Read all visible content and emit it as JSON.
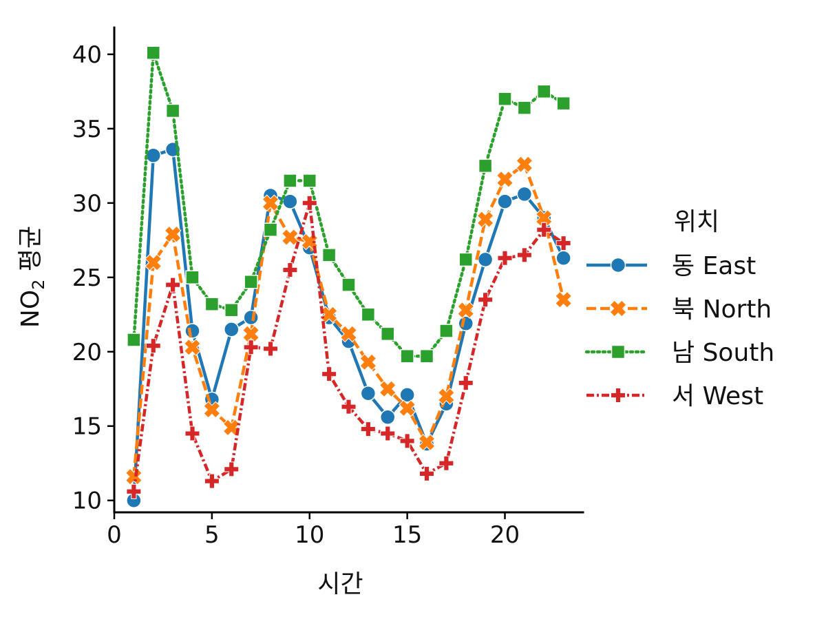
{
  "chart_data": {
    "type": "line",
    "xlabel": "시간",
    "ylabel_main": "NO",
    "ylabel_sub": "2",
    "ylabel_rest": " 평균",
    "xlim": [
      0,
      24
    ],
    "ylim": [
      9.2,
      41.8
    ],
    "xticks": [
      0,
      5,
      10,
      15,
      20
    ],
    "yticks": [
      10,
      15,
      20,
      25,
      30,
      35,
      40
    ],
    "legend": {
      "title": "위치",
      "placement": "center-right"
    },
    "grid": false,
    "x": [
      1,
      2,
      3,
      4,
      5,
      6,
      7,
      8,
      9,
      10,
      11,
      12,
      13,
      14,
      15,
      16,
      17,
      18,
      19,
      20,
      21,
      22,
      23
    ],
    "series": [
      {
        "name": "동 East",
        "color": "#1f77b4",
        "marker": "circle",
        "dash": "solid",
        "values": [
          10.0,
          33.2,
          33.6,
          21.4,
          16.8,
          21.5,
          22.3,
          30.5,
          30.1,
          27.0,
          22.3,
          20.7,
          17.2,
          15.6,
          17.1,
          13.8,
          16.5,
          21.9,
          26.2,
          30.1,
          30.6,
          29.0,
          26.3
        ]
      },
      {
        "name": "북 North",
        "color": "#ff7f0e",
        "marker": "x",
        "dash": "dashed",
        "values": [
          11.6,
          26.0,
          27.9,
          20.3,
          16.1,
          14.9,
          21.2,
          30.0,
          27.7,
          27.4,
          22.5,
          21.2,
          19.3,
          17.5,
          16.2,
          13.9,
          17.0,
          22.8,
          28.9,
          31.6,
          32.6,
          29.0,
          23.5
        ]
      },
      {
        "name": "남 South",
        "color": "#2ca02c",
        "marker": "square",
        "dash": "dotted",
        "values": [
          20.8,
          40.1,
          36.2,
          25.0,
          23.2,
          22.8,
          24.7,
          28.2,
          31.5,
          31.5,
          26.5,
          24.5,
          22.5,
          21.2,
          19.7,
          19.7,
          21.4,
          26.2,
          32.5,
          37.0,
          36.4,
          37.5,
          36.7
        ]
      },
      {
        "name": "서 West",
        "color": "#d62728",
        "marker": "plus",
        "dash": "dashdot",
        "values": [
          10.6,
          20.4,
          24.5,
          14.5,
          11.3,
          12.1,
          20.3,
          20.2,
          25.5,
          30.0,
          18.5,
          16.3,
          14.8,
          14.5,
          14.0,
          11.8,
          12.5,
          17.9,
          23.5,
          26.3,
          26.5,
          28.2,
          27.3
        ]
      }
    ]
  }
}
